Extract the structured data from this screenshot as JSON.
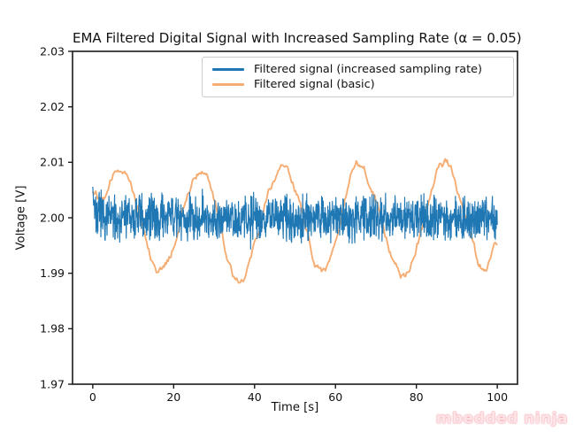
{
  "watermark": {
    "text": "mbedded ninja",
    "color": "#f2a2ad"
  },
  "chart_data": {
    "type": "line",
    "title": "EMA Filtered Digital Signal with Increased Sampling Rate (α = 0.05)",
    "xlabel": "Time [s]",
    "ylabel": "Voltage [V]",
    "xlim": [
      -5,
      105
    ],
    "ylim": [
      1.97,
      2.03
    ],
    "xticks": [
      {
        "value": 0,
        "label": "0"
      },
      {
        "value": 20,
        "label": "20"
      },
      {
        "value": 40,
        "label": "40"
      },
      {
        "value": 60,
        "label": "60"
      },
      {
        "value": 80,
        "label": "80"
      },
      {
        "value": 100,
        "label": "100"
      }
    ],
    "yticks": [
      {
        "value": 2.03,
        "label": "2.03"
      },
      {
        "value": 2.02,
        "label": "2.02"
      },
      {
        "value": 2.01,
        "label": "2.01"
      },
      {
        "value": 2.0,
        "label": "2.00"
      },
      {
        "value": 1.99,
        "label": "1.99"
      },
      {
        "value": 1.98,
        "label": "1.98"
      },
      {
        "value": 1.97,
        "label": "1.97"
      }
    ],
    "grid": false,
    "legend_position": "upper center",
    "spine_color": "#1a1a1a",
    "background": "#ffffff",
    "series": [
      {
        "name": "Filtered signal (increased sampling rate)",
        "color": "#1f77b4",
        "shape": "dense noise band",
        "baseline": 2.0,
        "typical_range": [
          1.995,
          2.005
        ],
        "extreme_range": [
          1.993,
          2.0065
        ],
        "noise_amplitude": 0.0047,
        "spike_chance": 0.03,
        "spike_gain": 1.35,
        "start_value": 2.0055,
        "n_points": 1500,
        "t_start": 0,
        "t_end": 100,
        "seed": 7,
        "line_width": 1.15
      },
      {
        "name": "Filtered signal (basic)",
        "color": "#f5ad73",
        "shape": "slow noisy sinusoid, period 20 s",
        "key_points": [
          [
            0,
            2.005
          ],
          [
            2.5,
            2.0035
          ],
          [
            7,
            2.0095
          ],
          [
            17,
            1.991
          ],
          [
            27,
            2.009
          ],
          [
            36,
            1.9895
          ],
          [
            47,
            2.009
          ],
          [
            57,
            1.991
          ],
          [
            66,
            2.009
          ],
          [
            77,
            1.99
          ],
          [
            87,
            2.01
          ],
          [
            97,
            1.9905
          ],
          [
            100,
            1.995
          ]
        ],
        "noise_increment": 0.0012,
        "noise_smoothing": 0.86,
        "n_points": 420,
        "t_start": 0,
        "t_end": 100,
        "seed": 12,
        "line_width": 1.9
      }
    ]
  }
}
